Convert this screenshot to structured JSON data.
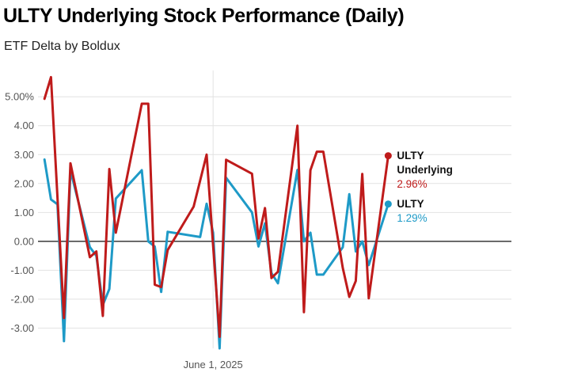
{
  "title": "ULTY Underlying Stock Performance (Daily)",
  "subtitle": "ETF Delta by Boldux",
  "chart_data": {
    "type": "line",
    "ylabel": "",
    "xlabel": "",
    "ylim": [
      -3.7,
      5.8
    ],
    "yticks": [
      {
        "value": 5,
        "label": "5.00%"
      },
      {
        "value": 4,
        "label": "4.00"
      },
      {
        "value": 3,
        "label": "3.00"
      },
      {
        "value": 2,
        "label": "2.00"
      },
      {
        "value": 1,
        "label": "1.00"
      },
      {
        "value": 0,
        "label": "0.00"
      },
      {
        "value": -1,
        "label": "-1.00"
      },
      {
        "value": -2,
        "label": "-2.00"
      },
      {
        "value": -3,
        "label": "-3.00"
      }
    ],
    "xlim": [
      "2025-05-05",
      "2025-07-17"
    ],
    "xticks": [
      {
        "value": "2025-06-01",
        "label": "June 1, 2025"
      }
    ],
    "grid": true,
    "series": [
      {
        "name": "ULTY Underlying",
        "end_label": "2.96%",
        "color": "#bf1b1b",
        "points": [
          [
            "2025-05-06",
            4.93
          ],
          [
            "2025-05-07",
            5.68
          ],
          [
            "2025-05-09",
            -2.65
          ],
          [
            "2025-05-10",
            2.7
          ],
          [
            "2025-05-13",
            -0.55
          ],
          [
            "2025-05-14",
            -0.35
          ],
          [
            "2025-05-15",
            -2.58
          ],
          [
            "2025-05-16",
            2.5
          ],
          [
            "2025-05-17",
            0.3
          ],
          [
            "2025-05-21",
            4.76
          ],
          [
            "2025-05-22",
            4.76
          ],
          [
            "2025-05-23",
            -1.5
          ],
          [
            "2025-05-24",
            -1.58
          ],
          [
            "2025-05-25",
            -0.3
          ],
          [
            "2025-05-29",
            1.2
          ],
          [
            "2025-05-31",
            3.0
          ],
          [
            "2025-06-02",
            -3.3
          ],
          [
            "2025-06-03",
            2.82
          ],
          [
            "2025-06-07",
            2.34
          ],
          [
            "2025-06-08",
            0.1
          ],
          [
            "2025-06-09",
            1.15
          ],
          [
            "2025-06-10",
            -1.27
          ],
          [
            "2025-06-11",
            -1.05
          ],
          [
            "2025-06-14",
            4.0
          ],
          [
            "2025-06-15",
            -2.45
          ],
          [
            "2025-06-16",
            2.46
          ],
          [
            "2025-06-17",
            3.1
          ],
          [
            "2025-06-18",
            3.1
          ],
          [
            "2025-06-21",
            -0.92
          ],
          [
            "2025-06-22",
            -1.92
          ],
          [
            "2025-06-23",
            -1.37
          ],
          [
            "2025-06-24",
            2.33
          ],
          [
            "2025-06-25",
            -1.97
          ],
          [
            "2025-06-28",
            2.96
          ]
        ]
      },
      {
        "name": "ULTY",
        "end_label": "1.29%",
        "color": "#1e9ac7",
        "points": [
          [
            "2025-05-06",
            2.83
          ],
          [
            "2025-05-07",
            1.45
          ],
          [
            "2025-05-08",
            1.28
          ],
          [
            "2025-05-09",
            -3.45
          ],
          [
            "2025-05-10",
            2.45
          ],
          [
            "2025-05-13",
            -0.2
          ],
          [
            "2025-05-14",
            -0.5
          ],
          [
            "2025-05-15",
            -2.2
          ],
          [
            "2025-05-16",
            -1.65
          ],
          [
            "2025-05-17",
            1.48
          ],
          [
            "2025-05-21",
            2.46
          ],
          [
            "2025-05-22",
            0.0
          ],
          [
            "2025-05-23",
            -0.18
          ],
          [
            "2025-05-24",
            -1.75
          ],
          [
            "2025-05-25",
            0.33
          ],
          [
            "2025-05-30",
            0.15
          ],
          [
            "2025-05-31",
            1.3
          ],
          [
            "2025-06-01",
            0.3
          ],
          [
            "2025-06-02",
            -3.7
          ],
          [
            "2025-06-03",
            2.2
          ],
          [
            "2025-06-07",
            1.0
          ],
          [
            "2025-06-08",
            -0.18
          ],
          [
            "2025-06-09",
            0.62
          ],
          [
            "2025-06-10",
            -1.1
          ],
          [
            "2025-06-11",
            -1.45
          ],
          [
            "2025-06-14",
            2.47
          ],
          [
            "2025-06-15",
            0.0
          ],
          [
            "2025-06-16",
            0.3
          ],
          [
            "2025-06-17",
            -1.15
          ],
          [
            "2025-06-18",
            -1.15
          ],
          [
            "2025-06-21",
            -0.2
          ],
          [
            "2025-06-22",
            1.63
          ],
          [
            "2025-06-23",
            -0.35
          ],
          [
            "2025-06-24",
            0.0
          ],
          [
            "2025-06-25",
            -0.82
          ],
          [
            "2025-06-28",
            1.29
          ]
        ]
      }
    ]
  }
}
